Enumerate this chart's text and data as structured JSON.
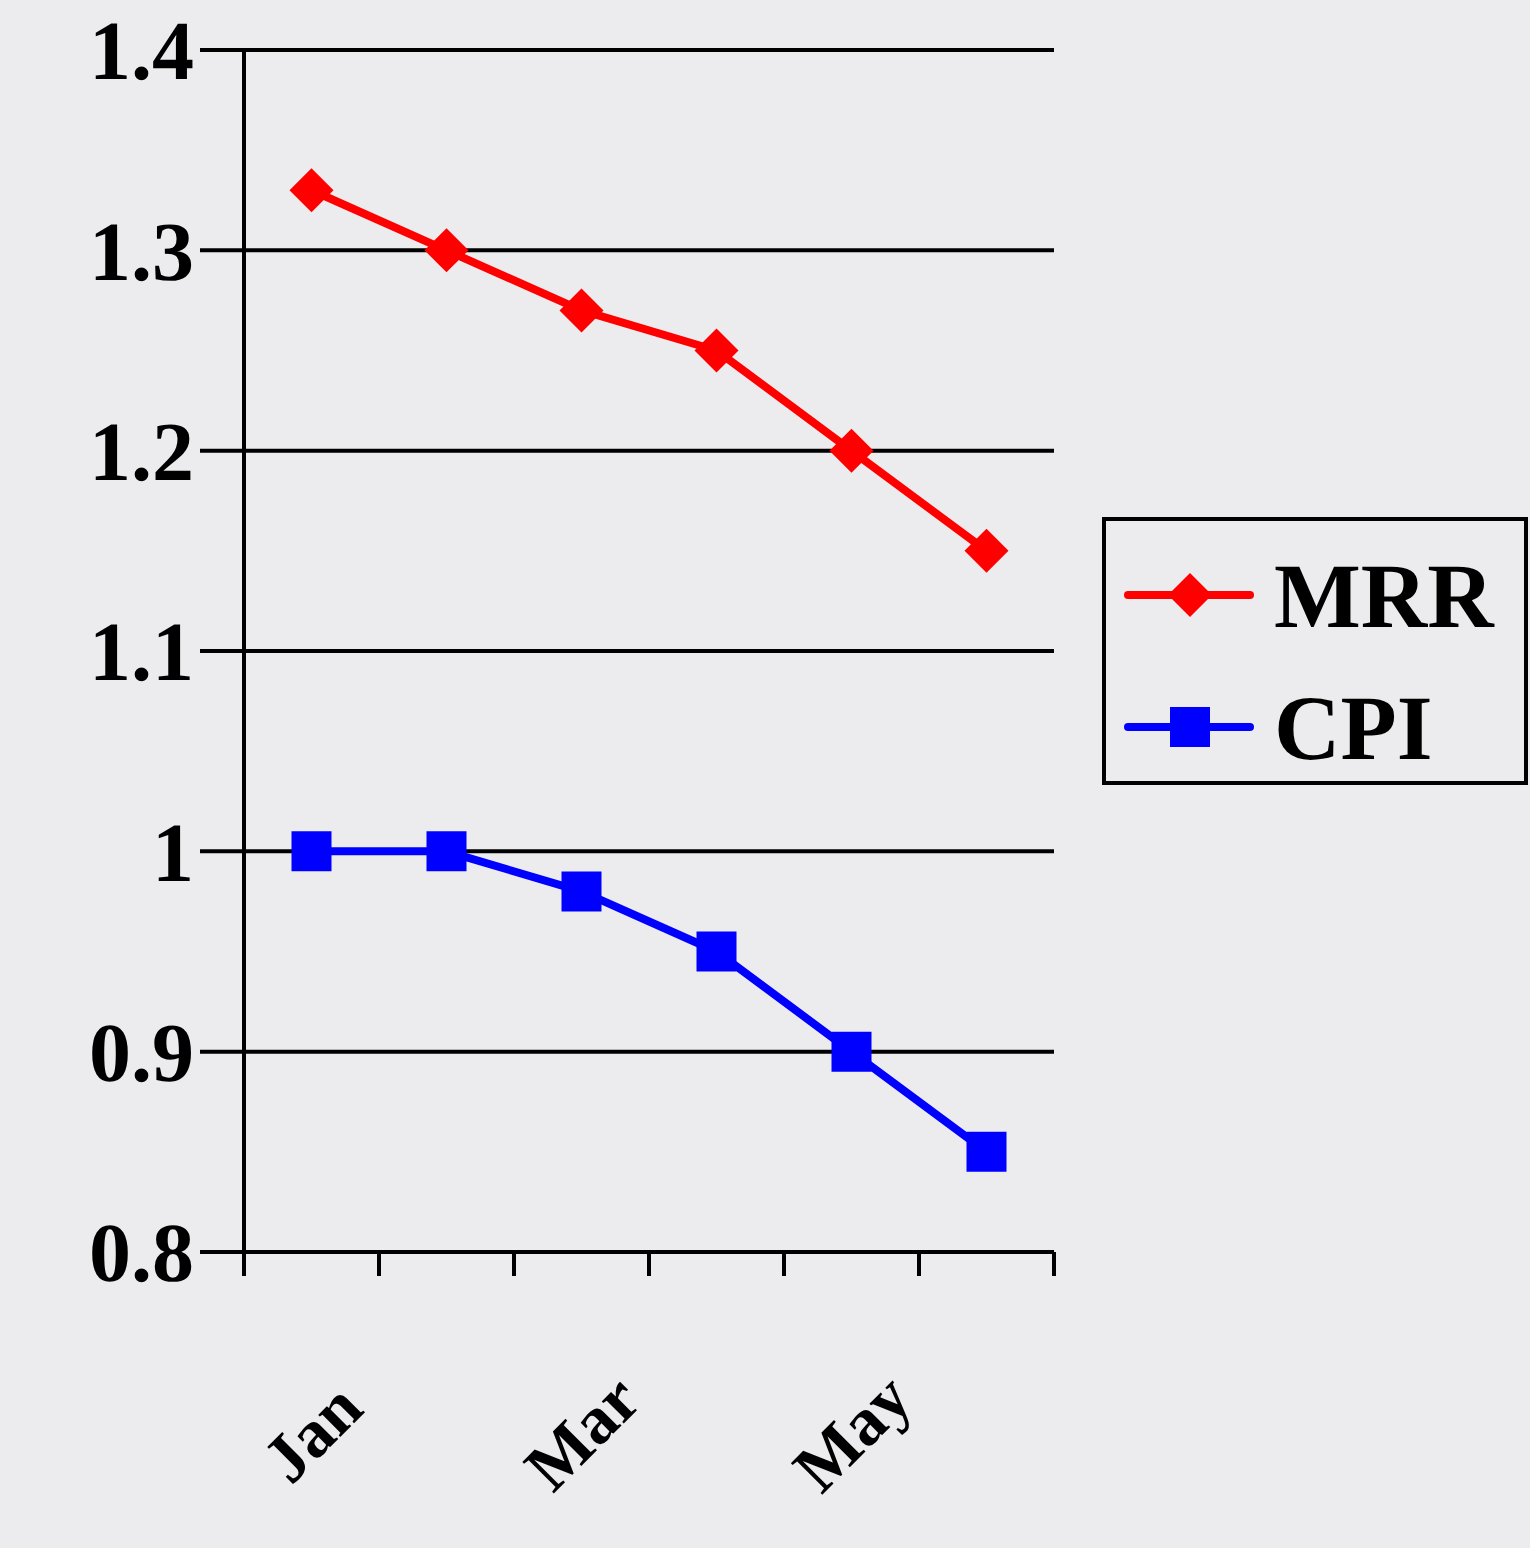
{
  "chart_data": {
    "type": "line",
    "categories": [
      "Jan",
      null,
      "Mar",
      null,
      "May",
      null
    ],
    "series": [
      {
        "name": "MRR",
        "color": "#ff0000",
        "marker": "diamond",
        "values": [
          1.33,
          1.3,
          1.27,
          1.25,
          1.2,
          1.15
        ]
      },
      {
        "name": "CPI",
        "color": "#0000ff",
        "marker": "square",
        "values": [
          1.0,
          1.0,
          0.98,
          0.95,
          0.9,
          0.85
        ]
      }
    ],
    "ylim": [
      0.8,
      1.4
    ],
    "yticks": [
      0.8,
      0.9,
      1,
      1.1,
      1.2,
      1.3,
      1.4
    ],
    "grid": "y",
    "legend": "right"
  }
}
